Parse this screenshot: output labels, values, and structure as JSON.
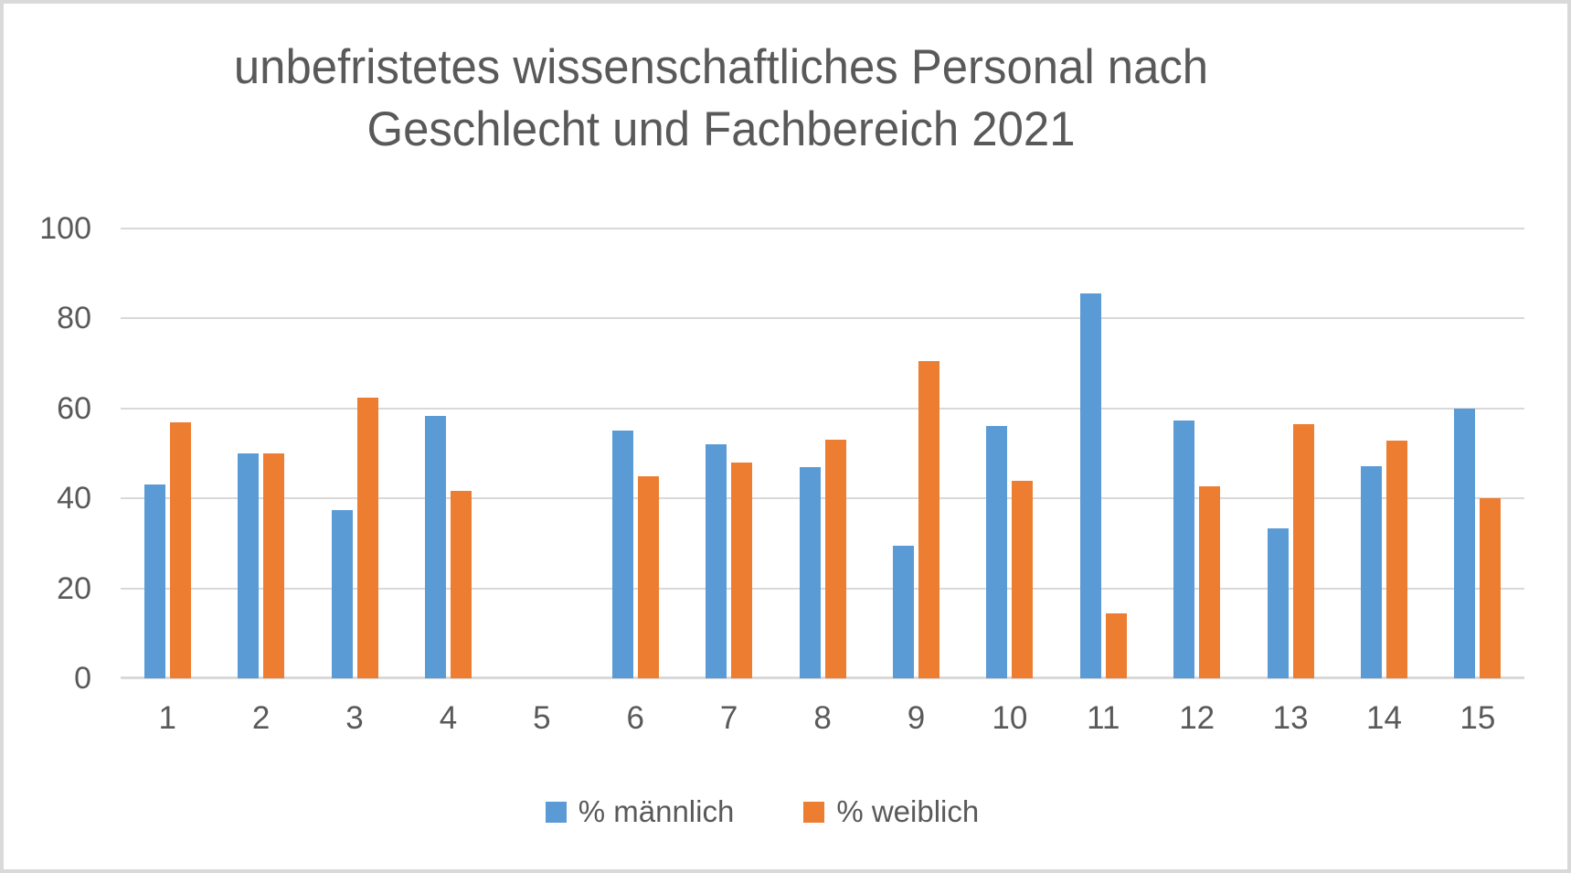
{
  "chart_data": {
    "type": "bar",
    "title": "unbefristetes wissenschaftliches Personal nach Geschlecht und Fachbereich 2021",
    "title_lines": [
      "unbefristetes wissenschaftliches Personal nach",
      "Geschlecht und Fachbereich 2021"
    ],
    "xlabel": "",
    "ylabel": "",
    "ylim": [
      0,
      100
    ],
    "yticks": [
      0,
      20,
      40,
      60,
      80,
      100
    ],
    "grid": true,
    "legend_position": "bottom",
    "categories": [
      "1",
      "2",
      "3",
      "4",
      "5",
      "6",
      "7",
      "8",
      "9",
      "10",
      "11",
      "12",
      "13",
      "14",
      "15"
    ],
    "series": [
      {
        "name": "% männlich",
        "color": "#5B9BD5",
        "values": [
          43,
          50,
          37.5,
          58.3,
          null,
          55,
          52,
          47,
          29.4,
          56,
          85.5,
          57.3,
          33.3,
          47.1,
          60
        ]
      },
      {
        "name": "% weiblich",
        "color": "#ED7D31",
        "values": [
          57,
          50,
          62.5,
          41.7,
          null,
          45,
          48,
          53,
          70.6,
          44,
          14.5,
          42.7,
          56.6,
          52.9,
          40
        ]
      }
    ],
    "colors": {
      "grid": "#D9D9D9",
      "text": "#595959",
      "border": "#D9D9D9"
    }
  }
}
